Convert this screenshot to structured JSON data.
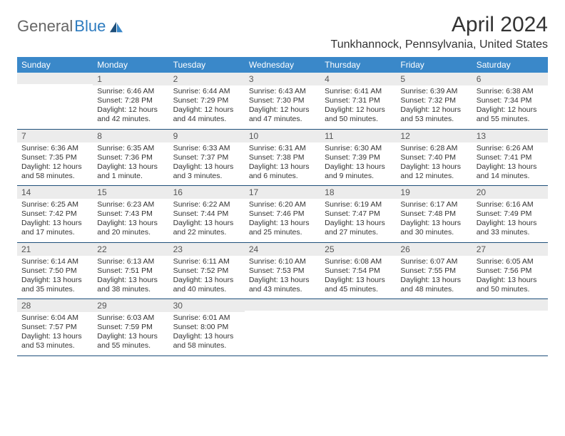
{
  "logo": {
    "part1": "General",
    "part2": "Blue"
  },
  "title": "April 2024",
  "location": "Tunkhannock, Pennsylvania, United States",
  "colors": {
    "header_bg": "#3a88c9",
    "header_text": "#ffffff",
    "daynum_bg": "#ececec",
    "daynum_text": "#555555",
    "body_text": "#333333",
    "week_border": "#1e4f7a",
    "logo_blue": "#2d7bbf",
    "logo_gray": "#666666"
  },
  "weekdays": [
    "Sunday",
    "Monday",
    "Tuesday",
    "Wednesday",
    "Thursday",
    "Friday",
    "Saturday"
  ],
  "weeks": [
    [
      {
        "n": "",
        "lines": []
      },
      {
        "n": "1",
        "lines": [
          "Sunrise: 6:46 AM",
          "Sunset: 7:28 PM",
          "Daylight: 12 hours",
          "and 42 minutes."
        ]
      },
      {
        "n": "2",
        "lines": [
          "Sunrise: 6:44 AM",
          "Sunset: 7:29 PM",
          "Daylight: 12 hours",
          "and 44 minutes."
        ]
      },
      {
        "n": "3",
        "lines": [
          "Sunrise: 6:43 AM",
          "Sunset: 7:30 PM",
          "Daylight: 12 hours",
          "and 47 minutes."
        ]
      },
      {
        "n": "4",
        "lines": [
          "Sunrise: 6:41 AM",
          "Sunset: 7:31 PM",
          "Daylight: 12 hours",
          "and 50 minutes."
        ]
      },
      {
        "n": "5",
        "lines": [
          "Sunrise: 6:39 AM",
          "Sunset: 7:32 PM",
          "Daylight: 12 hours",
          "and 53 minutes."
        ]
      },
      {
        "n": "6",
        "lines": [
          "Sunrise: 6:38 AM",
          "Sunset: 7:34 PM",
          "Daylight: 12 hours",
          "and 55 minutes."
        ]
      }
    ],
    [
      {
        "n": "7",
        "lines": [
          "Sunrise: 6:36 AM",
          "Sunset: 7:35 PM",
          "Daylight: 12 hours",
          "and 58 minutes."
        ]
      },
      {
        "n": "8",
        "lines": [
          "Sunrise: 6:35 AM",
          "Sunset: 7:36 PM",
          "Daylight: 13 hours",
          "and 1 minute."
        ]
      },
      {
        "n": "9",
        "lines": [
          "Sunrise: 6:33 AM",
          "Sunset: 7:37 PM",
          "Daylight: 13 hours",
          "and 3 minutes."
        ]
      },
      {
        "n": "10",
        "lines": [
          "Sunrise: 6:31 AM",
          "Sunset: 7:38 PM",
          "Daylight: 13 hours",
          "and 6 minutes."
        ]
      },
      {
        "n": "11",
        "lines": [
          "Sunrise: 6:30 AM",
          "Sunset: 7:39 PM",
          "Daylight: 13 hours",
          "and 9 minutes."
        ]
      },
      {
        "n": "12",
        "lines": [
          "Sunrise: 6:28 AM",
          "Sunset: 7:40 PM",
          "Daylight: 13 hours",
          "and 12 minutes."
        ]
      },
      {
        "n": "13",
        "lines": [
          "Sunrise: 6:26 AM",
          "Sunset: 7:41 PM",
          "Daylight: 13 hours",
          "and 14 minutes."
        ]
      }
    ],
    [
      {
        "n": "14",
        "lines": [
          "Sunrise: 6:25 AM",
          "Sunset: 7:42 PM",
          "Daylight: 13 hours",
          "and 17 minutes."
        ]
      },
      {
        "n": "15",
        "lines": [
          "Sunrise: 6:23 AM",
          "Sunset: 7:43 PM",
          "Daylight: 13 hours",
          "and 20 minutes."
        ]
      },
      {
        "n": "16",
        "lines": [
          "Sunrise: 6:22 AM",
          "Sunset: 7:44 PM",
          "Daylight: 13 hours",
          "and 22 minutes."
        ]
      },
      {
        "n": "17",
        "lines": [
          "Sunrise: 6:20 AM",
          "Sunset: 7:46 PM",
          "Daylight: 13 hours",
          "and 25 minutes."
        ]
      },
      {
        "n": "18",
        "lines": [
          "Sunrise: 6:19 AM",
          "Sunset: 7:47 PM",
          "Daylight: 13 hours",
          "and 27 minutes."
        ]
      },
      {
        "n": "19",
        "lines": [
          "Sunrise: 6:17 AM",
          "Sunset: 7:48 PM",
          "Daylight: 13 hours",
          "and 30 minutes."
        ]
      },
      {
        "n": "20",
        "lines": [
          "Sunrise: 6:16 AM",
          "Sunset: 7:49 PM",
          "Daylight: 13 hours",
          "and 33 minutes."
        ]
      }
    ],
    [
      {
        "n": "21",
        "lines": [
          "Sunrise: 6:14 AM",
          "Sunset: 7:50 PM",
          "Daylight: 13 hours",
          "and 35 minutes."
        ]
      },
      {
        "n": "22",
        "lines": [
          "Sunrise: 6:13 AM",
          "Sunset: 7:51 PM",
          "Daylight: 13 hours",
          "and 38 minutes."
        ]
      },
      {
        "n": "23",
        "lines": [
          "Sunrise: 6:11 AM",
          "Sunset: 7:52 PM",
          "Daylight: 13 hours",
          "and 40 minutes."
        ]
      },
      {
        "n": "24",
        "lines": [
          "Sunrise: 6:10 AM",
          "Sunset: 7:53 PM",
          "Daylight: 13 hours",
          "and 43 minutes."
        ]
      },
      {
        "n": "25",
        "lines": [
          "Sunrise: 6:08 AM",
          "Sunset: 7:54 PM",
          "Daylight: 13 hours",
          "and 45 minutes."
        ]
      },
      {
        "n": "26",
        "lines": [
          "Sunrise: 6:07 AM",
          "Sunset: 7:55 PM",
          "Daylight: 13 hours",
          "and 48 minutes."
        ]
      },
      {
        "n": "27",
        "lines": [
          "Sunrise: 6:05 AM",
          "Sunset: 7:56 PM",
          "Daylight: 13 hours",
          "and 50 minutes."
        ]
      }
    ],
    [
      {
        "n": "28",
        "lines": [
          "Sunrise: 6:04 AM",
          "Sunset: 7:57 PM",
          "Daylight: 13 hours",
          "and 53 minutes."
        ]
      },
      {
        "n": "29",
        "lines": [
          "Sunrise: 6:03 AM",
          "Sunset: 7:59 PM",
          "Daylight: 13 hours",
          "and 55 minutes."
        ]
      },
      {
        "n": "30",
        "lines": [
          "Sunrise: 6:01 AM",
          "Sunset: 8:00 PM",
          "Daylight: 13 hours",
          "and 58 minutes."
        ]
      },
      {
        "n": "",
        "lines": []
      },
      {
        "n": "",
        "lines": []
      },
      {
        "n": "",
        "lines": []
      },
      {
        "n": "",
        "lines": []
      }
    ]
  ]
}
